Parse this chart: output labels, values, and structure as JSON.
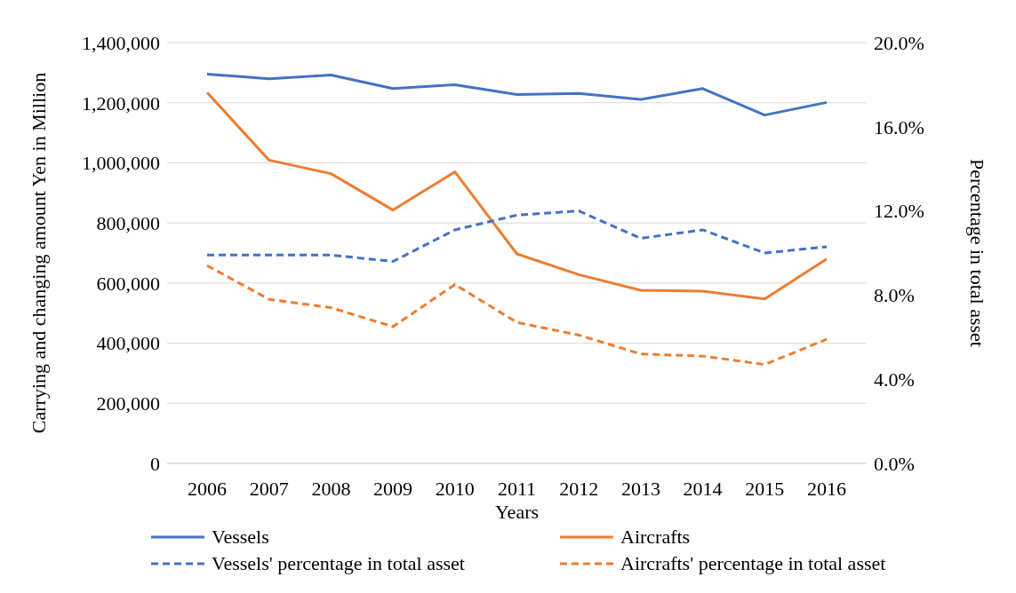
{
  "chart_data": {
    "type": "line",
    "xlabel": "Years",
    "ylabel": "Carrying and changing amount Yen in Million",
    "y2label": "Percentage in total asset",
    "categories": [
      "2006",
      "2007",
      "2008",
      "2009",
      "2010",
      "2011",
      "2012",
      "2013",
      "2014",
      "2015",
      "2016"
    ],
    "series": [
      {
        "name": "Vessels",
        "color": "#4472c4",
        "values": [
          1295000,
          1280000,
          1292000,
          1247000,
          1260000,
          1227000,
          1231000,
          1211000,
          1247000,
          1159000,
          1201000
        ]
      },
      {
        "name": "Aircrafts",
        "color": "#ed7d31",
        "values": [
          1234000,
          1009000,
          964000,
          843000,
          970000,
          697000,
          628000,
          576000,
          573000,
          547000,
          680000
        ]
      },
      {
        "name": "Vessels' percentage in total asset",
        "color": "#4472c4",
        "axis": "y2",
        "line_style": "dashed",
        "values": [
          9.9,
          9.9,
          9.9,
          9.6,
          11.1,
          11.8,
          12.0,
          10.7,
          11.1,
          10.0,
          10.3
        ]
      },
      {
        "name": "Aircrafts' percentage in total asset",
        "color": "#ed7d31",
        "axis": "y2",
        "line_style": "dashed",
        "values": [
          9.4,
          7.8,
          7.4,
          6.5,
          8.5,
          6.7,
          6.1,
          5.2,
          5.1,
          4.7,
          5.9
        ]
      }
    ],
    "ylim": [
      0,
      1400000
    ],
    "yticks": [
      0,
      {
        "value": 200000,
        "label": "200,000"
      },
      {
        "value": 400000,
        "label": "400,000"
      },
      {
        "value": 600000,
        "label": "600,000"
      },
      {
        "value": 800000,
        "label": "800,000"
      },
      {
        "value": 1000000,
        "label": "1,000,000"
      },
      {
        "value": 1200000,
        "label": "1,200,000"
      },
      {
        "value": 1400000,
        "label": "1,400,000"
      }
    ],
    "y2lim": [
      0,
      20
    ],
    "y2ticks": [
      {
        "value": 0,
        "label": "0.0%"
      },
      {
        "value": 4,
        "label": "4.0%"
      },
      {
        "value": 8,
        "label": "8.0%"
      },
      {
        "value": 12,
        "label": "12.0%"
      },
      {
        "value": 16,
        "label": "16.0%"
      },
      {
        "value": 20,
        "label": "20.0%"
      }
    ],
    "grid": "y",
    "legend": "bottom",
    "marker": "none",
    "line_style": "solid"
  }
}
